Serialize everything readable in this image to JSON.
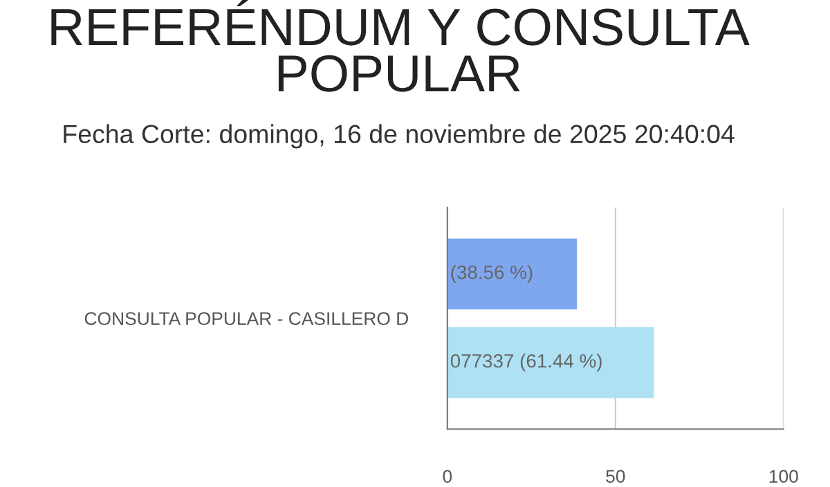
{
  "chart_data": {
    "type": "bar",
    "orientation": "horizontal",
    "title": "REFERÉNDUM Y CONSULTA POPULAR",
    "subtitle": "Fecha Corte: domingo, 16 de noviembre de 2025 20:40:04",
    "categories": [
      "CONSULTA POPULAR - CASILLERO D"
    ],
    "series": [
      {
        "color": "#7fa7f0",
        "values": [
          38.56
        ],
        "value_labels": [
          "(38.56 %)"
        ]
      },
      {
        "color": "#ade1f3",
        "values": [
          61.44
        ],
        "value_labels": [
          "077337 (61.44 %)"
        ]
      }
    ],
    "xlim": [
      0,
      100
    ],
    "xticks": [
      0,
      50,
      100
    ],
    "grid": "x",
    "legend": false
  }
}
